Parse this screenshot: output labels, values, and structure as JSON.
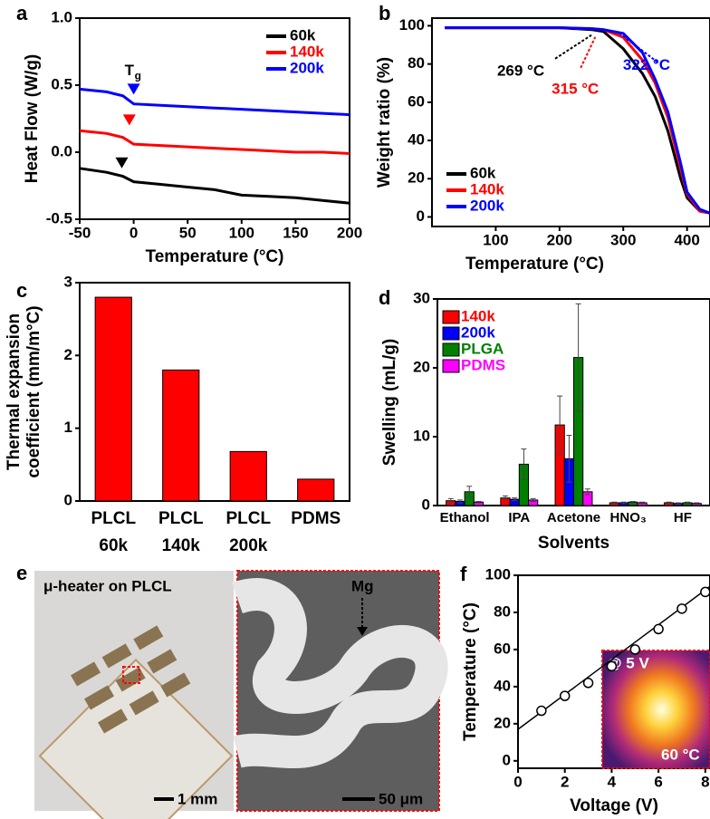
{
  "chart_data": [
    {
      "type": "line",
      "panel_label": "a",
      "xlabel": "Temperature (°C)",
      "ylabel": "Heat Flow (W/g)",
      "xlim": [
        -50,
        200
      ],
      "xticks": [
        -50,
        0,
        50,
        100,
        150,
        200
      ],
      "ylim": [
        -0.5,
        1.0
      ],
      "yticks": [
        -0.5,
        {
          "value": 0,
          "label": "0.0"
        },
        0.5,
        {
          "value": 1,
          "label": "1.0"
        }
      ],
      "x": [
        -50,
        -25,
        -10,
        0,
        25,
        50,
        75,
        100,
        125,
        150,
        175,
        200
      ],
      "series": [
        {
          "name": "60k",
          "color": "#000000",
          "values": [
            -0.12,
            -0.15,
            -0.18,
            -0.22,
            -0.24,
            -0.26,
            -0.28,
            -0.32,
            -0.33,
            -0.34,
            -0.36,
            -0.38
          ]
        },
        {
          "name": "140k",
          "color": "#ff0000",
          "values": [
            0.16,
            0.14,
            0.11,
            0.06,
            0.05,
            0.04,
            0.03,
            0.02,
            0.01,
            0.0,
            0.0,
            -0.01
          ]
        },
        {
          "name": "200k",
          "color": "#0000ff",
          "values": [
            0.47,
            0.45,
            0.42,
            0.36,
            0.35,
            0.34,
            0.33,
            0.32,
            0.31,
            0.3,
            0.29,
            0.28
          ]
        }
      ],
      "markers": [
        {
          "x": 0,
          "y": 0.43,
          "color": "#0000ff"
        },
        {
          "x": -4,
          "y": 0.2,
          "color": "#ff0000"
        },
        {
          "x": -11,
          "y": -0.12,
          "color": "#000000"
        }
      ],
      "tg_label": {
        "text": "T",
        "sub": "g"
      },
      "legend": "upper right"
    },
    {
      "type": "line",
      "panel_label": "b",
      "xlabel": "Temperature (°C)",
      "ylabel": "Weight ratio (%)",
      "xlim": [
        0,
        436
      ],
      "xticks": [
        100,
        200,
        300,
        400
      ],
      "ylim": [
        -5,
        104
      ],
      "yticks": [
        0,
        20,
        40,
        60,
        80,
        100
      ],
      "x": [
        20,
        100,
        200,
        250,
        269,
        300,
        330,
        350,
        370,
        390,
        400,
        420,
        436
      ],
      "series": [
        {
          "name": "60k",
          "color": "#000000",
          "values": [
            99,
            99,
            99,
            98,
            97,
            88,
            75,
            63,
            45,
            20,
            10,
            3,
            2
          ]
        },
        {
          "name": "140k",
          "color": "#ff0000",
          "values": [
            99,
            99,
            99,
            98.5,
            98,
            94,
            82,
            70,
            52,
            25,
            12,
            3,
            2
          ]
        },
        {
          "name": "200k",
          "color": "#0000ff",
          "values": [
            99,
            99,
            99,
            98.5,
            98,
            96,
            86,
            72,
            55,
            28,
            13,
            4,
            2
          ]
        }
      ],
      "annotations": [
        {
          "text": "269 °C",
          "x": 250,
          "y": 97,
          "color": "#000000"
        },
        {
          "text": "315 °C",
          "x": 256,
          "y": 96,
          "color": "#ff0000"
        },
        {
          "text": "322 °C",
          "x": 294,
          "y": 98,
          "color": "#0000ff"
        }
      ],
      "legend": "lower left"
    },
    {
      "type": "bar",
      "panel_label": "c",
      "ylabel_lines": [
        "Thermal expansion",
        "coefficient (mm/m°C)"
      ],
      "categories": [
        [
          "PLCL",
          "60k"
        ],
        [
          "PLCL",
          "140k"
        ],
        [
          "PLCL",
          "200k"
        ],
        [
          "PDMS"
        ]
      ],
      "values": [
        2.8,
        1.8,
        0.68,
        0.3
      ],
      "color": "#ff0000",
      "ylim": [
        0,
        3
      ],
      "yticks": [
        0,
        1,
        2,
        3
      ]
    },
    {
      "type": "grouped_bar",
      "panel_label": "d",
      "xlabel": "Solvents",
      "ylabel": "Swelling (mL/g)",
      "categories": [
        "Ethanol",
        "IPA",
        "Acetone",
        "HNO₃",
        "HF"
      ],
      "ylim": [
        0,
        30
      ],
      "yticks": [
        0,
        10,
        20,
        30
      ],
      "series": [
        {
          "name": "140k",
          "color": "#ff0000",
          "values": [
            0.7,
            1.1,
            11.7,
            0.4,
            0.4
          ],
          "errors": [
            0.3,
            0.3,
            4.2,
            0.1,
            0.1
          ]
        },
        {
          "name": "200k",
          "color": "#0000ff",
          "values": [
            0.6,
            0.9,
            6.8,
            0.4,
            0.3
          ],
          "errors": [
            0.2,
            0.2,
            3.4,
            0.1,
            0.1
          ]
        },
        {
          "name": "PLGA",
          "color": "#008000",
          "values": [
            2.0,
            6.0,
            21.5,
            0.5,
            0.4
          ],
          "errors": [
            0.8,
            2.2,
            7.8,
            0.1,
            0.1
          ]
        },
        {
          "name": "PDMS",
          "color": "#ff00ff",
          "values": [
            0.5,
            0.8,
            2.0,
            0.4,
            0.3
          ],
          "errors": [
            0.1,
            0.2,
            0.4,
            0.1,
            0.1
          ]
        }
      ],
      "legend": "upper left"
    },
    {
      "type": "scatter",
      "panel_label": "f",
      "xlabel": "Voltage (V)",
      "ylabel": "Temperature (°C)",
      "xlim": [
        0,
        8.2
      ],
      "xticks": [
        0,
        2,
        4,
        6,
        8
      ],
      "ylim": [
        -4,
        100
      ],
      "yticks": [
        0,
        20,
        40,
        60,
        80,
        100
      ],
      "x": [
        1,
        2,
        3,
        4,
        5,
        6,
        7,
        8
      ],
      "values": [
        27,
        35,
        42,
        51,
        60,
        71,
        82,
        91
      ],
      "fit": {
        "x": [
          0,
          8.2
        ],
        "y": [
          17,
          94
        ]
      },
      "inset": {
        "voltage": "@ 5 V",
        "temperature": "60 °C"
      }
    }
  ],
  "panel_e": {
    "panel_label": "e",
    "photo_title": "μ-heater on PLCL",
    "scale_left": "1 mm",
    "material": "Mg",
    "scale_right": "50 μm"
  }
}
